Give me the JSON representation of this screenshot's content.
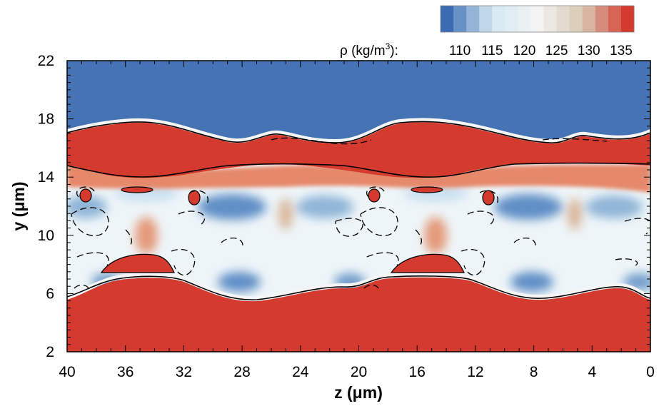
{
  "chart_data": {
    "type": "heatmap",
    "xlabel": "z (μm)",
    "ylabel": "y (μm)",
    "xlim": [
      40,
      0
    ],
    "ylim": [
      2,
      22
    ],
    "x_ticks": [
      "40",
      "36",
      "32",
      "28",
      "24",
      "20",
      "16",
      "12",
      "8",
      "4",
      "0"
    ],
    "y_ticks": [
      "2",
      "6",
      "10",
      "14",
      "18",
      "22"
    ],
    "x_tick_values": [
      40,
      36,
      32,
      28,
      24,
      20,
      16,
      12,
      8,
      4,
      0
    ],
    "y_tick_values": [
      2,
      6,
      10,
      14,
      18,
      22
    ],
    "x_minor_step": 1,
    "y_minor_step": 0.5,
    "colorbar": {
      "label_prefix": "ρ (kg/m",
      "label_sup": "3",
      "label_suffix": "):",
      "min": 107,
      "max": 137,
      "levels": 15,
      "tick_labels": [
        "110",
        "115",
        "120",
        "125",
        "130",
        "135"
      ],
      "tick_values": [
        110,
        115,
        120,
        125,
        130,
        135
      ],
      "colors": [
        "#3b6cb3",
        "#d6e9f3",
        "#f3f3f3",
        "#d7c9b3",
        "#d53a2e"
      ]
    },
    "field": {
      "upper_gas_density": 107,
      "liquid_density": 137,
      "interface_top_y": [
        17.0,
        17.8,
        17.7,
        16.9,
        16.4,
        17.3,
        16.4,
        16.9,
        17.7,
        17.8,
        17.0
      ],
      "interface_top_z": [
        40,
        36,
        34,
        30,
        26,
        24,
        22,
        19,
        16,
        14,
        10
      ],
      "lower_interface_y": [
        5.8,
        7.0,
        7.0,
        5.8,
        6.4,
        7.0,
        7.0,
        5.8,
        6.4,
        6.0,
        5.7
      ],
      "lower_interface_z": [
        40,
        36,
        32,
        29,
        25,
        20,
        12,
        9,
        5,
        2,
        0
      ]
    }
  }
}
